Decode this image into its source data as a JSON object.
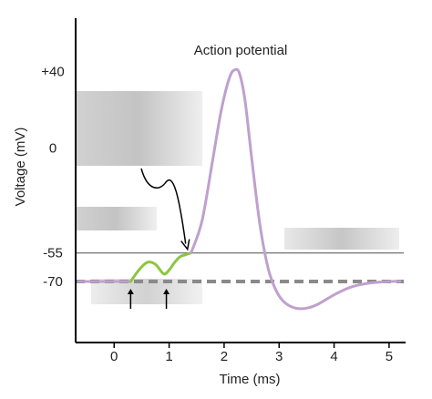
{
  "chart_data": {
    "type": "line",
    "title": "",
    "xlabel": "Time (ms)",
    "ylabel": "Voltage (mV)",
    "xlim": [
      -0.7,
      5.3
    ],
    "ylim": [
      -102,
      68
    ],
    "x_ticks": [
      {
        "value": 0,
        "label": "0"
      },
      {
        "value": 1,
        "label": "1"
      },
      {
        "value": 2,
        "label": "2"
      },
      {
        "value": 3,
        "label": "3"
      },
      {
        "value": 4,
        "label": "4"
      },
      {
        "value": 5,
        "label": "5"
      }
    ],
    "y_ticks": [
      {
        "value": 40,
        "label": "+40"
      },
      {
        "value": 0,
        "label": "0"
      },
      {
        "value": -55,
        "label": "-55"
      },
      {
        "value": -70,
        "label": "-70"
      }
    ],
    "reference_lines": [
      {
        "value": -55,
        "style": "solid",
        "color": "#808080"
      },
      {
        "value": -70,
        "style": "dashed",
        "color": "#8a8a8a"
      }
    ],
    "annotations": [
      {
        "text": "Action potential",
        "x": 2.3,
        "y": 49
      }
    ],
    "series": [
      {
        "color": "#bfa0ce",
        "x": [
          -0.65,
          0.3
        ],
        "y": [
          -70,
          -70
        ]
      },
      {
        "color": "#8cc63f",
        "x": [
          0.3,
          0.45,
          0.6,
          0.75,
          0.9,
          1.0,
          1.1,
          1.2,
          1.3,
          1.4
        ],
        "y": [
          -70,
          -64,
          -60,
          -61,
          -66,
          -64,
          -60,
          -57,
          -56,
          -55
        ]
      },
      {
        "color": "#bfa0ce",
        "x": [
          1.4,
          1.6,
          1.8,
          1.95,
          2.1,
          2.2,
          2.28,
          2.38,
          2.5,
          2.65,
          2.8,
          2.95,
          3.1,
          3.3,
          3.5,
          3.7,
          4.0,
          4.3,
          4.6,
          5.0,
          5.2
        ],
        "y": [
          -55,
          -38,
          -5,
          20,
          37,
          41,
          39,
          25,
          -5,
          -40,
          -63,
          -75,
          -81,
          -84,
          -84,
          -82,
          -77,
          -73,
          -71,
          -70,
          -70
        ]
      }
    ],
    "markers": [
      {
        "x": 0.3,
        "label": ""
      },
      {
        "x": 0.95,
        "label": ""
      }
    ]
  },
  "colors": {
    "axis": "#000000",
    "text": "#222222",
    "membrane_trace": "#bfa0ce",
    "stimulus_trace": "#8cc63f"
  }
}
